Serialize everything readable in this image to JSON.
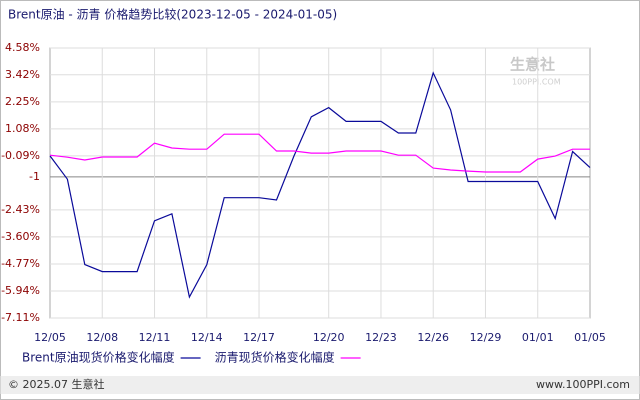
{
  "chart_data": {
    "type": "line",
    "title": "Brent原油 - 沥青 价格趋势比较(2023-12-05 - 2024-01-05)",
    "watermark": "生意社",
    "watermark_site": "100PPI.COM",
    "footer_left": "© 2025.07 生意社",
    "footer_right": "www.100PPI.com",
    "categories": [
      "12/05",
      null,
      null,
      "12/08",
      null,
      null,
      "12/11",
      null,
      null,
      "12/14",
      null,
      null,
      "12/17",
      null,
      null,
      null,
      "12/20",
      null,
      null,
      "12/23",
      null,
      null,
      "12/26",
      null,
      null,
      "12/29",
      null,
      null,
      "01/01",
      null,
      null,
      "01/05"
    ],
    "series": [
      {
        "name": "Brent原油现货价格变化幅度",
        "color": "#0a0a9a",
        "values": [
          -0.09,
          -1.1,
          -4.8,
          -5.1,
          -5.1,
          -5.1,
          -2.9,
          -2.6,
          -6.2,
          -4.8,
          -1.9,
          -1.9,
          -1.9,
          -2.0,
          -0.1,
          1.6,
          2.0,
          1.4,
          1.4,
          1.4,
          0.9,
          0.9,
          3.5,
          1.9,
          -1.2,
          -1.2,
          -1.2,
          -1.2,
          -1.2,
          -2.8,
          0.1,
          -0.6
        ]
      },
      {
        "name": "沥青现货价格变化幅度",
        "color": "#ff00ff",
        "values": [
          -0.06,
          -0.15,
          -0.27,
          -0.14,
          -0.14,
          -0.14,
          0.46,
          0.25,
          0.2,
          0.2,
          0.85,
          0.85,
          0.85,
          0.12,
          0.12,
          0.03,
          0.03,
          0.12,
          0.12,
          0.12,
          -0.06,
          -0.06,
          -0.62,
          -0.7,
          -0.75,
          -0.79,
          -0.79,
          -0.79,
          -0.23,
          -0.1,
          0.2,
          0.2
        ]
      }
    ],
    "ylim": [
      -7.11,
      4.58
    ],
    "yticks": [
      {
        "value": 4.58,
        "label": "4.58%"
      },
      {
        "value": 3.42,
        "label": "3.42%"
      },
      {
        "value": 2.25,
        "label": "2.25%"
      },
      {
        "value": 1.08,
        "label": "1.08%"
      },
      {
        "value": -0.09,
        "label": "-0.09%"
      },
      -1,
      {
        "value": -2.43,
        "label": "-2.43%"
      },
      {
        "value": -3.6,
        "label": "-3.60%"
      },
      {
        "value": -4.77,
        "label": "-4.77%"
      },
      {
        "value": -5.94,
        "label": "-5.94%"
      },
      {
        "value": -7.11,
        "label": "-7.11%"
      }
    ],
    "grid": true
  }
}
